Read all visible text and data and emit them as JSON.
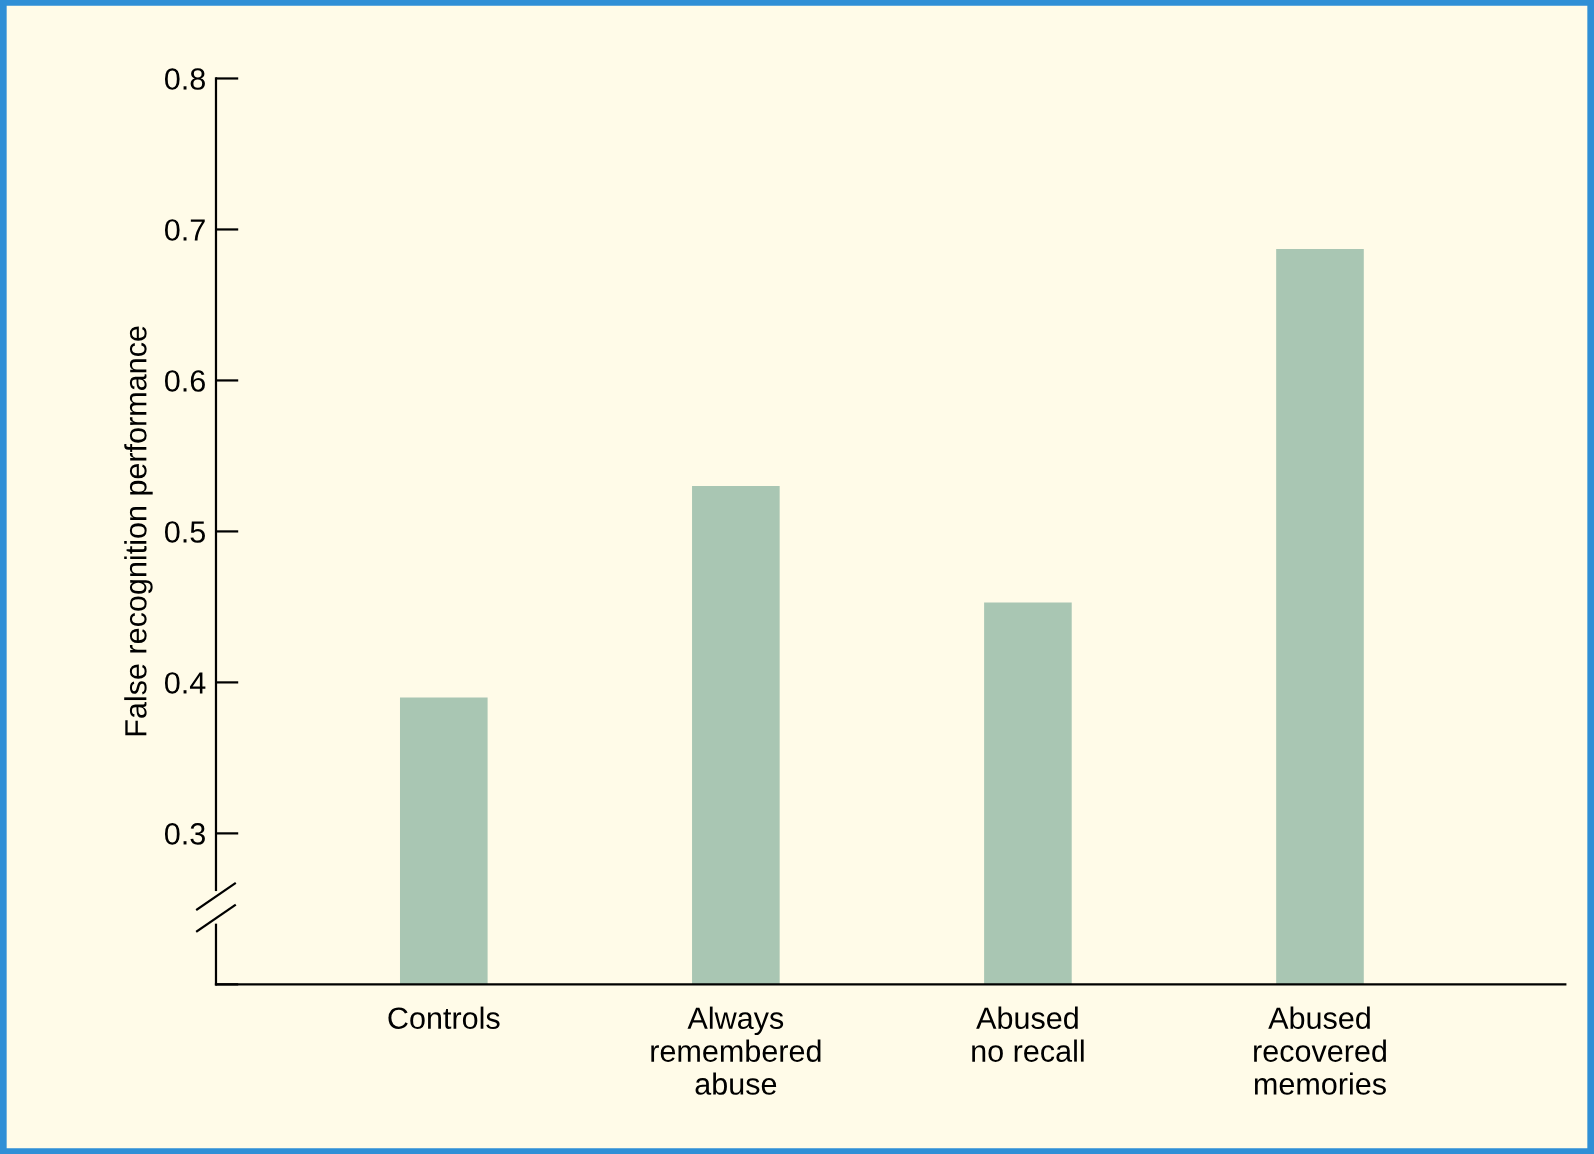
{
  "chart_data": {
    "type": "bar",
    "ylabel": "False recognition performance",
    "categories": [
      "Controls",
      "Always\nremembered\nabuse",
      "Abused\nno recall",
      "Abused\nrecovered\nmemories"
    ],
    "values": [
      0.39,
      0.53,
      0.453,
      0.687
    ],
    "color": "#a9c6b3",
    "ylim": [
      0.2,
      0.8
    ],
    "yticks": [
      {
        "value": 0.2,
        "label": null
      },
      0.3,
      0.4,
      0.5,
      0.6,
      0.7,
      0.8
    ],
    "grid": false,
    "legend": false
  }
}
